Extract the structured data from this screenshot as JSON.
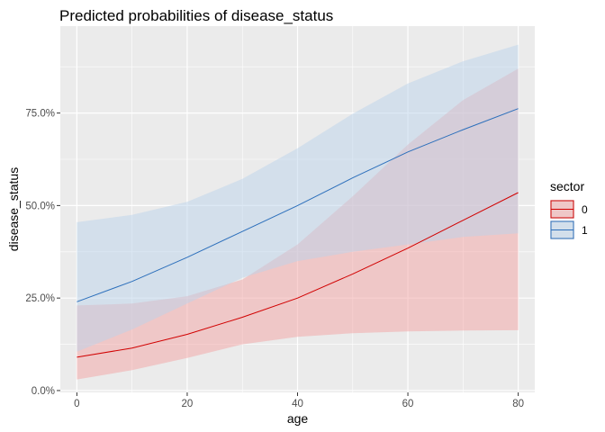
{
  "chart_data": {
    "type": "line",
    "title": "Predicted probabilities of disease_status",
    "xlabel": "age",
    "ylabel": "disease_status",
    "xlim": [
      -3,
      83
    ],
    "ylim": [
      -0.005,
      0.985
    ],
    "x_ticks": [
      0,
      20,
      40,
      60,
      80
    ],
    "x_tick_labels": [
      "0",
      "20",
      "40",
      "60",
      "80"
    ],
    "y_ticks": [
      0,
      0.25,
      0.5,
      0.75
    ],
    "y_tick_labels": [
      "0.0%",
      "25.0%",
      "50.0%",
      "75.0%"
    ],
    "grid": true,
    "legend": {
      "title": "sector",
      "position": "right"
    },
    "series": [
      {
        "name": "0",
        "color": "#d10000",
        "fill": "#f4a3a3",
        "x": [
          0,
          10,
          20,
          30,
          40,
          50,
          60,
          70,
          80
        ],
        "values": [
          0.09,
          0.115,
          0.152,
          0.198,
          0.25,
          0.315,
          0.385,
          0.46,
          0.535
        ],
        "lower": [
          0.03,
          0.055,
          0.088,
          0.125,
          0.145,
          0.155,
          0.16,
          0.162,
          0.163
        ],
        "upper": [
          0.23,
          0.235,
          0.255,
          0.3,
          0.395,
          0.525,
          0.665,
          0.785,
          0.87
        ]
      },
      {
        "name": "1",
        "color": "#2c6fbb",
        "fill": "#bcd3ec",
        "x": [
          0,
          10,
          20,
          30,
          40,
          50,
          60,
          70,
          80
        ],
        "values": [
          0.24,
          0.295,
          0.36,
          0.43,
          0.5,
          0.575,
          0.645,
          0.705,
          0.762
        ],
        "lower": [
          0.105,
          0.165,
          0.235,
          0.305,
          0.35,
          0.375,
          0.395,
          0.415,
          0.425
        ],
        "upper": [
          0.455,
          0.475,
          0.51,
          0.572,
          0.655,
          0.748,
          0.83,
          0.89,
          0.935
        ]
      }
    ]
  }
}
